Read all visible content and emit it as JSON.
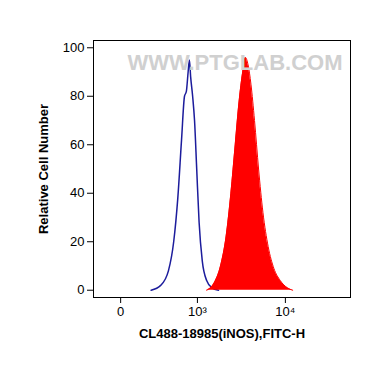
{
  "chart_data": {
    "type": "histogram",
    "x_label": "CL488-18985(iNOS),FITC-H",
    "y_label": "Relative Cell Number",
    "annotations": [
      "WWW.PTGLAB.COM"
    ],
    "log": "x",
    "xlim": [
      -170,
      50000
    ],
    "xticks": [
      0,
      {
        "value": 1000,
        "label": "10³"
      },
      {
        "value": 10000,
        "label": "10⁴"
      }
    ],
    "ylim": [
      -3,
      103
    ],
    "yticks": [
      0,
      20,
      40,
      60,
      80,
      100
    ],
    "grid": false,
    "series": [
      {
        "type": "line",
        "color": "#1c1c9c",
        "x": [
          200,
          300,
          400,
          480,
          550,
          620,
          680,
          720,
          760,
          790,
          820,
          870,
          920,
          980,
          1050,
          1150,
          1300,
          1500,
          1800
        ],
        "values": [
          0,
          2,
          8,
          20,
          38,
          62,
          80,
          82,
          90,
          95,
          88,
          80,
          70,
          50,
          28,
          12,
          4,
          1,
          0
        ]
      },
      {
        "type": "area",
        "color": "#ff0000",
        "x": [
          1300,
          1600,
          1900,
          2200,
          2500,
          2800,
          3100,
          3400,
          3650,
          3900,
          4200,
          4600,
          5100,
          5700,
          6500,
          7500,
          8800,
          10500,
          12000
        ],
        "values": [
          0,
          3,
          10,
          22,
          40,
          60,
          78,
          90,
          96,
          93,
          85,
          70,
          50,
          32,
          18,
          9,
          4,
          1,
          0
        ]
      }
    ]
  }
}
